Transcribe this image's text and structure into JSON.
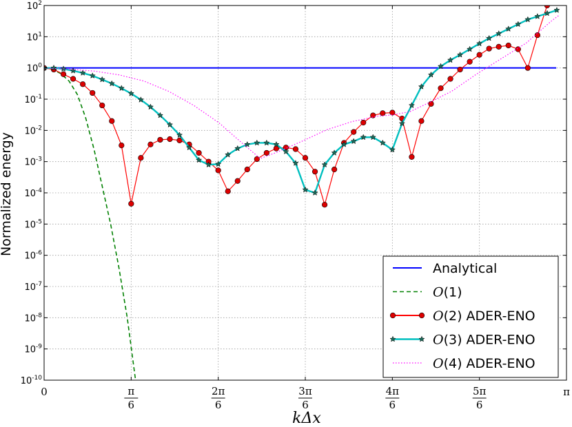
{
  "chart_data": {
    "type": "line",
    "title": "",
    "xlabel": "kΔx",
    "ylabel": "Normalized energy",
    "y_scale": "log",
    "ylim_exponents": [
      -10,
      2
    ],
    "xlim": [
      0,
      3.14159
    ],
    "grid": true,
    "legend_placement": "lower-right",
    "x_ticks": [
      {
        "value": 0,
        "label": "0"
      },
      {
        "value": 0.5236,
        "num": "π",
        "den": "6"
      },
      {
        "value": 1.0472,
        "num": "2π",
        "den": "6"
      },
      {
        "value": 1.5708,
        "num": "3π",
        "den": "6"
      },
      {
        "value": 2.0944,
        "num": "4π",
        "den": "6"
      },
      {
        "value": 2.618,
        "num": "5π",
        "den": "6"
      },
      {
        "value": 3.14159,
        "label": "π"
      }
    ],
    "y_ticks": [
      {
        "exp": 2,
        "base": "10",
        "sup": "2"
      },
      {
        "exp": 1,
        "base": "10",
        "sup": "1"
      },
      {
        "exp": 0,
        "base": "10",
        "sup": "0"
      },
      {
        "exp": -1,
        "base": "10",
        "sup": "-1"
      },
      {
        "exp": -2,
        "base": "10",
        "sup": "-2"
      },
      {
        "exp": -3,
        "base": "10",
        "sup": "-3"
      },
      {
        "exp": -4,
        "base": "10",
        "sup": "-4"
      },
      {
        "exp": -5,
        "base": "10",
        "sup": "-5"
      },
      {
        "exp": -6,
        "base": "10",
        "sup": "-6"
      },
      {
        "exp": -7,
        "base": "10",
        "sup": "-7"
      },
      {
        "exp": -8,
        "base": "10",
        "sup": "-8"
      },
      {
        "exp": -9,
        "base": "10",
        "sup": "-9"
      },
      {
        "exp": -10,
        "base": "10",
        "sup": "-10"
      }
    ],
    "series": [
      {
        "name": "Analytical",
        "color": "#0000ff",
        "style": "solid",
        "marker": "none",
        "x": [
          0,
          3.08
        ],
        "log10_y": [
          0,
          0
        ]
      },
      {
        "name": "O(1)",
        "legend_math": "O",
        "legend_rest": "(1)",
        "color": "#008000",
        "style": "dashed",
        "marker": "none",
        "x": [
          0,
          0.05,
          0.1,
          0.15,
          0.2,
          0.25,
          0.3,
          0.35,
          0.4,
          0.45,
          0.5,
          0.55
        ],
        "log10_y": [
          0,
          -0.04,
          -0.18,
          -0.42,
          -0.85,
          -1.6,
          -2.6,
          -3.8,
          -5.0,
          -6.4,
          -8.0,
          -10.0
        ]
      },
      {
        "name": "O(2) ADER-ENO",
        "legend_math": "O",
        "legend_rest": "(2) ADER-ENO",
        "color": "#ff0000",
        "style": "solid",
        "marker": "circle",
        "marker_fill": "#dd0000",
        "x": [
          0,
          0.0582,
          0.1164,
          0.1745,
          0.2327,
          0.2909,
          0.3491,
          0.4072,
          0.4654,
          0.5236,
          0.5818,
          0.64,
          0.6981,
          0.7563,
          0.8145,
          0.8727,
          0.9308,
          0.989,
          1.0472,
          1.1054,
          1.1636,
          1.2217,
          1.2799,
          1.3381,
          1.3963,
          1.4544,
          1.5126,
          1.5708,
          1.629,
          1.6872,
          1.7453,
          1.8035,
          1.8617,
          1.9199,
          1.978,
          2.0362,
          2.0944,
          2.1526,
          2.2108,
          2.2689,
          2.3271,
          2.3853,
          2.4435,
          2.5016,
          2.5598,
          2.618,
          2.6762,
          2.7343,
          2.7925,
          2.8507,
          2.9089,
          2.967,
          3.0252
        ],
        "log10_y": [
          0,
          -0.05,
          -0.2,
          -0.35,
          -0.52,
          -0.8,
          -1.2,
          -1.7,
          -2.48,
          -4.35,
          -2.88,
          -2.45,
          -2.3,
          -2.28,
          -2.32,
          -2.45,
          -2.72,
          -3.0,
          -3.28,
          -3.95,
          -3.62,
          -3.25,
          -2.92,
          -2.72,
          -2.58,
          -2.55,
          -2.6,
          -2.88,
          -3.32,
          -4.38,
          -3.25,
          -2.4,
          -2.05,
          -1.75,
          -1.52,
          -1.45,
          -1.43,
          -1.62,
          -2.85,
          -1.7,
          -1.15,
          -0.65,
          -0.35,
          -0.05,
          0.2,
          0.42,
          0.62,
          0.68,
          0.72,
          0.6,
          0.0,
          1.05,
          2.0
        ]
      },
      {
        "name": "O(3) ADER-ENO",
        "legend_math": "O",
        "legend_rest": "(3) ADER-ENO",
        "color": "#00bfbf",
        "style": "solid",
        "marker": "star",
        "marker_fill": "#1c6b5a",
        "x": [
          0,
          0.0582,
          0.1164,
          0.1745,
          0.2327,
          0.2909,
          0.3491,
          0.4072,
          0.4654,
          0.5236,
          0.5818,
          0.64,
          0.6981,
          0.7563,
          0.8145,
          0.8727,
          0.9308,
          0.989,
          1.0472,
          1.1054,
          1.1636,
          1.2217,
          1.2799,
          1.3381,
          1.3963,
          1.4544,
          1.5126,
          1.5708,
          1.629,
          1.6872,
          1.7453,
          1.8035,
          1.8617,
          1.9199,
          1.978,
          2.0362,
          2.0944,
          2.1526,
          2.2108,
          2.2689,
          2.3271,
          2.3853,
          2.4435,
          2.5016,
          2.5598,
          2.618,
          2.6762,
          2.7343,
          2.7925,
          2.8507,
          2.9089,
          2.967,
          3.0252,
          3.0834
        ],
        "log10_y": [
          0,
          0.0,
          -0.03,
          -0.09,
          -0.16,
          -0.25,
          -0.37,
          -0.5,
          -0.65,
          -0.82,
          -1.02,
          -1.25,
          -1.52,
          -1.82,
          -2.15,
          -2.55,
          -2.95,
          -3.1,
          -3.08,
          -2.78,
          -2.58,
          -2.45,
          -2.4,
          -2.4,
          -2.45,
          -2.68,
          -3.05,
          -3.9,
          -4.0,
          -3.1,
          -2.72,
          -2.45,
          -2.35,
          -2.22,
          -2.22,
          -2.4,
          -2.62,
          -1.78,
          -1.2,
          -0.6,
          -0.22,
          0.05,
          0.25,
          0.42,
          0.6,
          0.78,
          0.95,
          1.1,
          1.25,
          1.4,
          1.55,
          1.65,
          1.75,
          1.85
        ]
      },
      {
        "name": "O(4) ADER-ENO",
        "legend_math": "O",
        "legend_rest": "(4) ADER-ENO",
        "color": "#ff00ff",
        "style": "dotted",
        "marker": "none",
        "x": [
          0,
          0.15,
          0.3,
          0.45,
          0.6,
          0.75,
          0.9,
          1.05,
          1.2,
          1.3,
          1.4,
          1.55,
          1.7,
          1.85,
          2.0,
          2.1,
          2.2,
          2.3,
          2.45,
          2.6,
          2.75,
          2.9,
          3.05,
          3.1
        ],
        "log10_y": [
          0,
          -0.04,
          -0.1,
          -0.22,
          -0.42,
          -0.75,
          -1.2,
          -1.75,
          -2.45,
          -2.9,
          -2.7,
          -2.35,
          -1.98,
          -1.72,
          -1.55,
          -1.5,
          -1.4,
          -1.15,
          -0.75,
          -0.2,
          0.3,
          0.8,
          1.5,
          1.7
        ]
      }
    ]
  }
}
